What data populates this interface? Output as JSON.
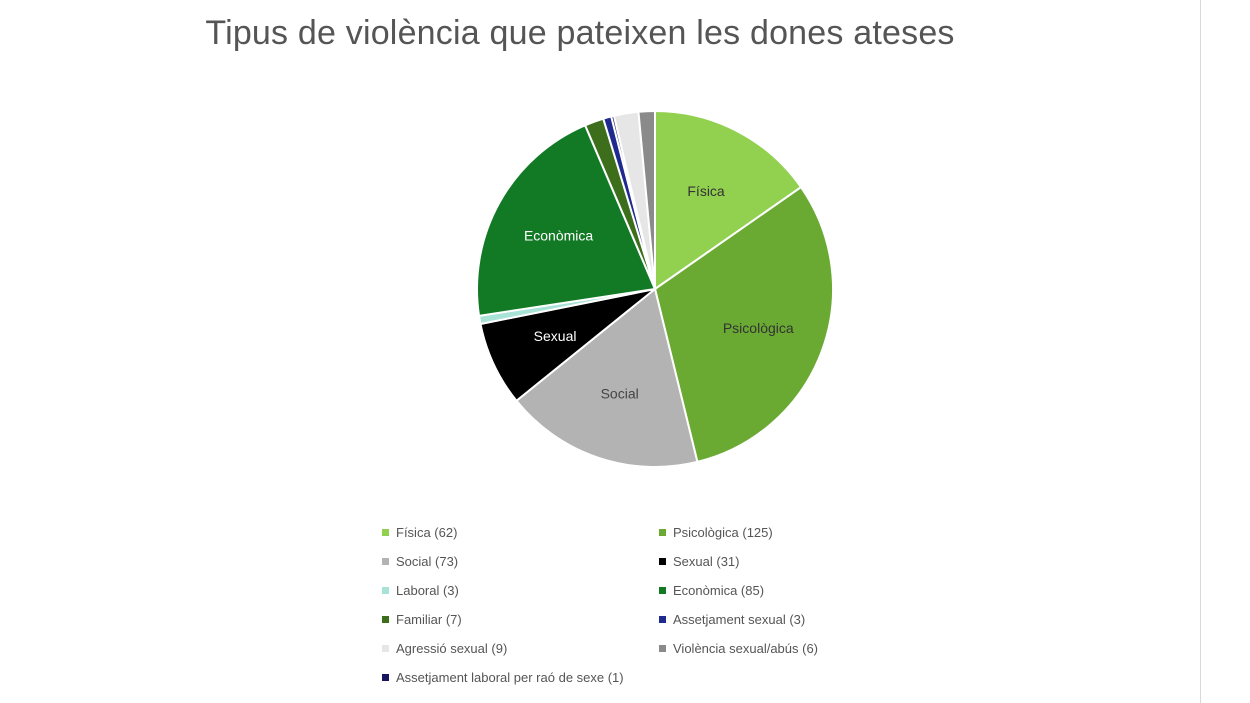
{
  "chart_data": {
    "type": "pie",
    "title": "Tipus de violència que pateixen les dones ateses",
    "slices": [
      {
        "label": "Física",
        "value": 62,
        "color": "#92d050",
        "legend": "Física (62)",
        "show_label": true,
        "label_color": "#333333"
      },
      {
        "label": "Psicològica",
        "value": 125,
        "color": "#6aaa33",
        "legend": "Psicològica (125)",
        "show_label": true,
        "label_color": "#333333"
      },
      {
        "label": "Social",
        "value": 73,
        "color": "#b3b3b3",
        "legend": "Social (73)",
        "show_label": true,
        "label_color": "#444444"
      },
      {
        "label": "Sexual",
        "value": 31,
        "color": "#000000",
        "legend": "Sexual (31)",
        "show_label": true,
        "label_color": "#ffffff"
      },
      {
        "label": "Laboral",
        "value": 3,
        "color": "#a9e2d6",
        "legend": "Laboral (3)",
        "show_label": false,
        "label_color": "#333333"
      },
      {
        "label": "Econòmica",
        "value": 85,
        "color": "#127a25",
        "legend": "Econòmica (85)",
        "show_label": true,
        "label_color": "#ffffff"
      },
      {
        "label": "Familiar",
        "value": 7,
        "color": "#3c6e1c",
        "legend": "Familiar (7)",
        "show_label": false,
        "label_color": "#333333"
      },
      {
        "label": "Assetjament sexual",
        "value": 3,
        "color": "#1f2a8f",
        "legend": "Assetjament sexual (3)",
        "show_label": false,
        "label_color": "#333333"
      },
      {
        "label": "Agressió sexual",
        "value": 9,
        "color": "#e6e6e6",
        "legend": "Agressió sexual (9)",
        "show_label": false,
        "label_color": "#333333"
      },
      {
        "label": "Violència sexual/abús",
        "value": 6,
        "color": "#8a8a8a",
        "legend": "Violència sexual/abús (6)",
        "show_label": false,
        "label_color": "#333333"
      },
      {
        "label": "Assetjament laboral per raó de sexe",
        "value": 1,
        "color": "#151560",
        "legend": "Assetjament laboral per raó de sexe (1)",
        "show_label": false,
        "label_color": "#333333"
      }
    ],
    "slice_order": [
      0,
      1,
      2,
      3,
      4,
      5,
      6,
      7,
      10,
      8,
      9
    ],
    "legend_placement": "bottom"
  }
}
